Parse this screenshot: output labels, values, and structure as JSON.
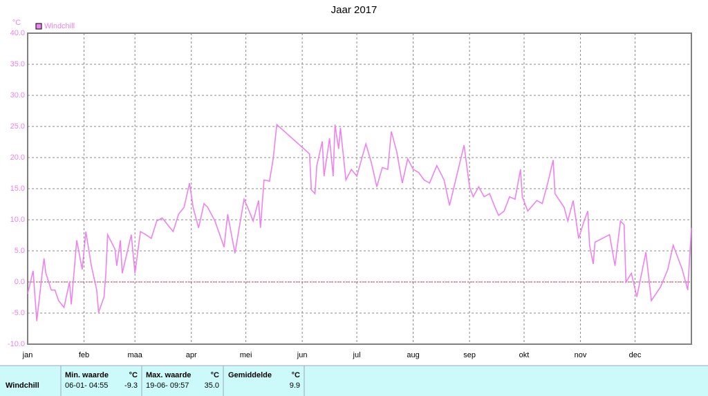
{
  "chart_data": {
    "type": "line",
    "title": "Jaar 2017",
    "y_unit": "°C",
    "legend": "top-left",
    "grid": true,
    "zero_line": true,
    "xlim": [
      0,
      365
    ],
    "xticks": [
      {
        "value": 0,
        "label": "jan"
      },
      {
        "value": 31,
        "label": "feb"
      },
      {
        "value": 59,
        "label": "maa"
      },
      {
        "value": 90,
        "label": "apr"
      },
      {
        "value": 120,
        "label": "mei"
      },
      {
        "value": 151,
        "label": "jun"
      },
      {
        "value": 181,
        "label": "jul"
      },
      {
        "value": 212,
        "label": "aug"
      },
      {
        "value": 243,
        "label": "sep"
      },
      {
        "value": 273,
        "label": "okt"
      },
      {
        "value": 304,
        "label": "nov"
      },
      {
        "value": 334,
        "label": "dec"
      }
    ],
    "ylim": [
      -10,
      40
    ],
    "yticks": [
      {
        "value": -10,
        "label": "-10.0"
      },
      {
        "value": -5,
        "label": "-5.0"
      },
      {
        "value": 0,
        "label": "0.0"
      },
      {
        "value": 5,
        "label": "5.0"
      },
      {
        "value": 10,
        "label": "10.0"
      },
      {
        "value": 15,
        "label": "15.0"
      },
      {
        "value": 20,
        "label": "20.0"
      },
      {
        "value": 25,
        "label": "25.0"
      },
      {
        "value": 30,
        "label": "30.0"
      },
      {
        "value": 35,
        "label": "35.0"
      },
      {
        "value": 40,
        "label": "40.0"
      }
    ],
    "x": [
      0,
      3,
      5,
      8,
      9,
      10,
      13,
      15,
      17,
      20,
      23,
      24,
      27,
      30,
      32,
      35,
      38,
      39,
      42,
      43,
      44,
      48,
      49,
      51,
      52,
      57,
      59,
      62,
      65,
      68,
      71,
      74,
      77,
      80,
      83,
      86,
      89,
      91,
      94,
      97,
      99,
      103,
      108,
      110,
      114,
      119,
      121,
      124,
      127,
      128,
      130,
      133,
      135,
      137,
      155,
      156,
      158,
      159,
      162,
      163,
      166,
      168,
      169,
      171,
      172,
      175,
      178,
      181,
      186,
      189,
      192,
      195,
      198,
      200,
      203,
      206,
      209,
      212,
      215,
      218,
      221,
      225,
      229,
      232,
      240,
      243,
      245,
      248,
      251,
      254,
      257,
      259,
      262,
      265,
      268,
      271,
      272,
      275,
      280,
      283,
      286,
      289,
      290,
      295,
      297,
      300,
      303,
      306,
      308,
      309,
      311,
      312,
      320,
      323,
      326,
      328,
      329,
      332,
      335,
      340,
      343,
      348,
      352,
      355,
      360,
      363,
      365
    ],
    "series": [
      {
        "name": "Windchill",
        "color": "#ee82ee",
        "values": [
          -1.9,
          1.8,
          -6.3,
          1.4,
          3.8,
          1.4,
          -1.3,
          -1.3,
          -3.0,
          -4.1,
          0.0,
          -3.6,
          6.7,
          2.0,
          8.1,
          2.6,
          -1.3,
          -4.9,
          -2.4,
          1.4,
          7.6,
          5.3,
          2.6,
          6.7,
          1.4,
          7.6,
          1.4,
          8.1,
          7.6,
          7.0,
          9.8,
          10.3,
          9.2,
          8.1,
          10.9,
          12.0,
          15.9,
          12.0,
          8.7,
          12.6,
          12.0,
          9.8,
          5.6,
          10.9,
          4.6,
          13.3,
          12.0,
          9.8,
          13.1,
          8.7,
          16.4,
          16.2,
          19.8,
          25.3,
          20.6,
          14.8,
          14.2,
          18.7,
          22.6,
          17.0,
          23.1,
          17.0,
          25.3,
          21.4,
          24.8,
          16.4,
          18.1,
          17.0,
          22.2,
          19.2,
          15.3,
          18.4,
          18.1,
          24.2,
          20.9,
          15.9,
          19.8,
          18.1,
          17.6,
          16.4,
          15.9,
          18.7,
          16.4,
          12.3,
          22.0,
          15.3,
          13.7,
          15.3,
          13.7,
          14.2,
          12.0,
          10.7,
          11.4,
          13.7,
          13.3,
          18.1,
          13.7,
          11.4,
          13.1,
          12.6,
          15.9,
          19.6,
          14.2,
          12.0,
          9.8,
          13.1,
          7.0,
          9.8,
          11.4,
          5.9,
          2.9,
          6.4,
          7.6,
          2.6,
          9.8,
          9.2,
          0.0,
          1.4,
          -2.4,
          4.8,
          -3.0,
          -0.8,
          2.0,
          5.9,
          2.0,
          -1.3,
          8.7
        ]
      }
    ]
  },
  "table": {
    "header": [
      "Min. waarde",
      "°C",
      "Max. waarde",
      "°C",
      "Gemiddelde",
      "°C"
    ],
    "rows": [
      {
        "label": "Windchill",
        "cells": [
          "06-01- 04:55",
          "-9.3",
          "19-06- 09:57",
          "35.0",
          "9.9"
        ]
      }
    ]
  }
}
